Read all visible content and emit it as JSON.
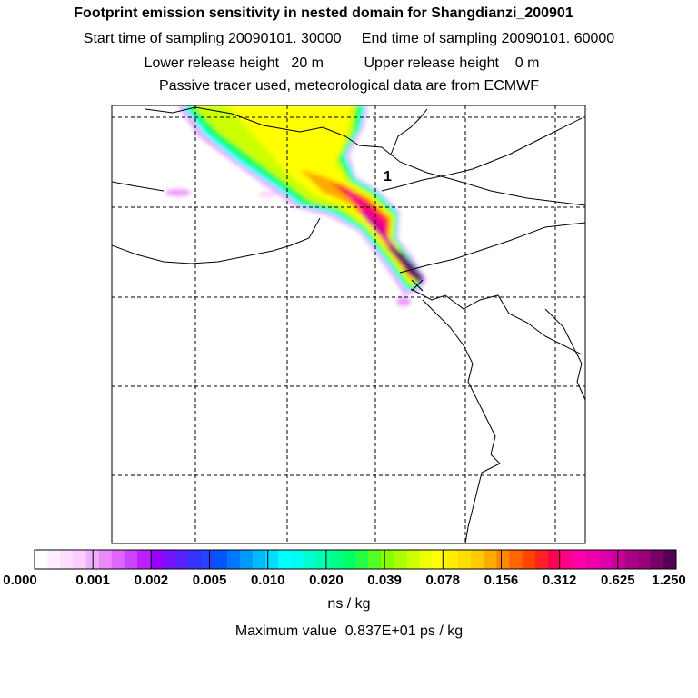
{
  "header": {
    "title": "Footprint emission sensitivity in nested domain for Shangdianzi_200901",
    "sampling_line": "Start time of sampling 20090101. 30000     End time of sampling 20090101. 60000",
    "release_line": "Lower release height   20 m          Upper release height    0 m",
    "tracer_line": "Passive tracer used, meteorological data are from ECMWF"
  },
  "map": {
    "release_label": "1",
    "release_marker": "x-icon"
  },
  "colorbar": {
    "ticks": [
      "0.000",
      "0.001",
      "0.002",
      "0.005",
      "0.010",
      "0.020",
      "0.039",
      "0.078",
      "0.156",
      "0.312",
      "0.625",
      "1.250"
    ],
    "colors": [
      "#ffffff",
      "#ffeeff",
      "#ffddff",
      "#ffccff",
      "#eeb0ff",
      "#ee88ff",
      "#dd66ff",
      "#cc44ff",
      "#bb22ff",
      "#9900ff",
      "#7711ff",
      "#5522ff",
      "#3333ff",
      "#2244ff",
      "#0055ff",
      "#0077ff",
      "#0099ff",
      "#00bbff",
      "#00ddff",
      "#00ffff",
      "#00ffee",
      "#00ffcc",
      "#00ffaa",
      "#00ff88",
      "#00ff66",
      "#22ff44",
      "#55ff22",
      "#88ff00",
      "#aaff00",
      "#ccff00",
      "#eeff00",
      "#ffff00",
      "#ffee00",
      "#ffdd00",
      "#ffcc00",
      "#ffaa00",
      "#ff8800",
      "#ff6600",
      "#ff4400",
      "#ff2222",
      "#ff0055",
      "#ff0088",
      "#ff00aa",
      "#ee00aa",
      "#dd00aa",
      "#cc0099",
      "#aa0088",
      "#990077",
      "#770066",
      "#550055"
    ],
    "units": "ns / kg"
  },
  "footer": {
    "max_value": "Maximum value  0.837E+01 ps / kg"
  }
}
